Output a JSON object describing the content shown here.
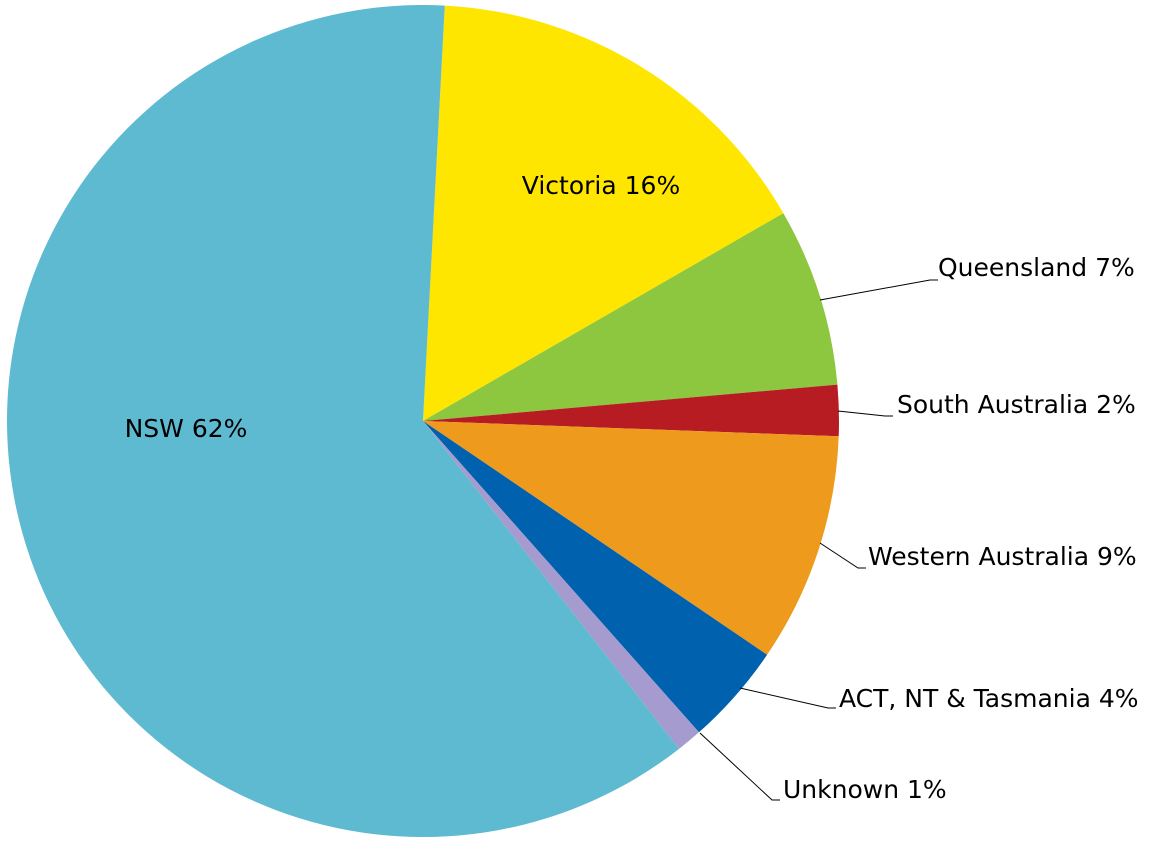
{
  "chart_data": {
    "type": "pie",
    "title": "",
    "slices": [
      {
        "name": "Victoria",
        "value": 16,
        "label": "Victoria 16%",
        "color": "#FFE600"
      },
      {
        "name": "Queensland",
        "value": 7,
        "label": "Queensland 7%",
        "color": "#8DC63F"
      },
      {
        "name": "South Australia",
        "value": 2,
        "label": "South Australia 2%",
        "color": "#B71C22"
      },
      {
        "name": "Western Australia",
        "value": 9,
        "label": "Western Australia 9%",
        "color": "#EE9A1D"
      },
      {
        "name": "ACT, NT & Tasmania",
        "value": 4,
        "label": "ACT, NT & Tasmania 4%",
        "color": "#0061AE"
      },
      {
        "name": "Unknown",
        "value": 1,
        "label": "Unknown 1%",
        "color": "#A59BCF"
      },
      {
        "name": "NSW",
        "value": 62,
        "label": "NSW 62%",
        "color": "#5DBAD1"
      }
    ]
  }
}
